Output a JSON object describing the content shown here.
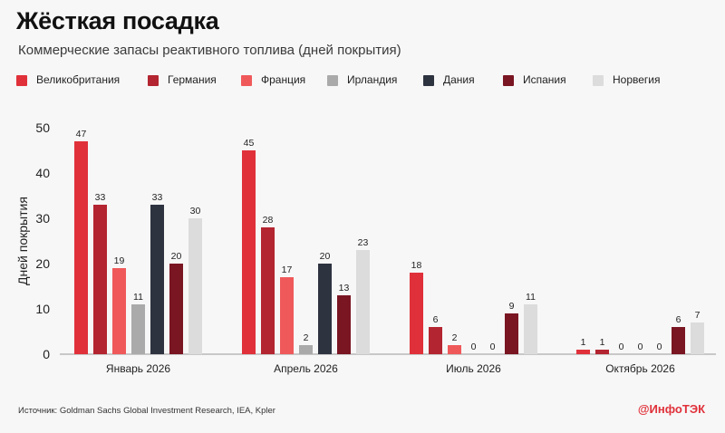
{
  "header": {
    "title": "Жёсткая посадка",
    "subtitle": "Коммерческие запасы реактивного топлива (дней покрытия)"
  },
  "footer": {
    "source": "Источник: Goldman Sachs Global Investment Research, IEA, Kpler",
    "brand": "@ИнфоТЭК"
  },
  "chart_data": {
    "type": "bar",
    "title": "Жёсткая посадка",
    "subtitle": "Коммерческие запасы реактивного топлива (дней покрытия)",
    "xlabel": "",
    "ylabel": "Дней покрытия",
    "ylim": [
      0,
      50
    ],
    "yticks": [
      0,
      10,
      20,
      30,
      40,
      50
    ],
    "grid": false,
    "legend_position": "top",
    "categories": [
      "Январь 2026",
      "Апрель 2026",
      "Июль 2026",
      "Октябрь 2026"
    ],
    "series": [
      {
        "name": "Великобритания",
        "color": "#e0313a",
        "values": [
          47,
          45,
          18,
          1
        ]
      },
      {
        "name": "Германия",
        "color": "#b32530",
        "values": [
          33,
          28,
          6,
          1
        ]
      },
      {
        "name": "Франция",
        "color": "#f0595a",
        "values": [
          19,
          17,
          2,
          0
        ]
      },
      {
        "name": "Ирландия",
        "color": "#aaaaaa",
        "values": [
          11,
          2,
          0,
          0
        ]
      },
      {
        "name": "Дания",
        "color": "#2e3340",
        "values": [
          33,
          20,
          0,
          0
        ]
      },
      {
        "name": "Испания",
        "color": "#7a1522",
        "values": [
          20,
          13,
          9,
          6
        ]
      },
      {
        "name": "Норвегия",
        "color": "#dcdcdc",
        "values": [
          30,
          23,
          11,
          7
        ]
      }
    ]
  }
}
